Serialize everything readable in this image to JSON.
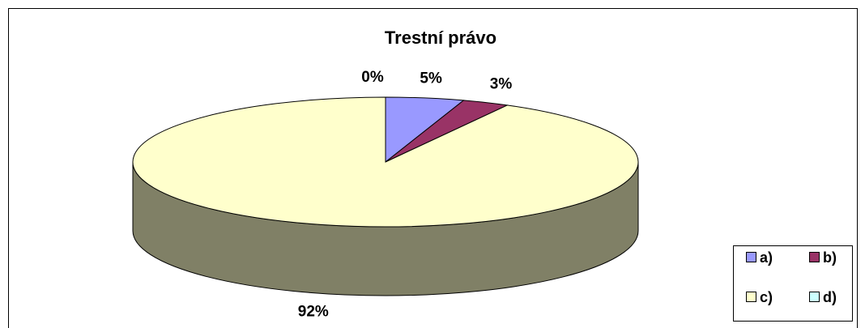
{
  "chart_data": {
    "type": "pie",
    "title": "Trestní právo",
    "categories": [
      "a)",
      "b)",
      "c)",
      "d)"
    ],
    "values": [
      5,
      3,
      92,
      0
    ],
    "value_labels": [
      "5%",
      "3%",
      "92%",
      "0%"
    ],
    "colors": [
      "#9999ff",
      "#993366",
      "#ffffcc",
      "#ccffff"
    ],
    "legend": "bottom-right"
  }
}
